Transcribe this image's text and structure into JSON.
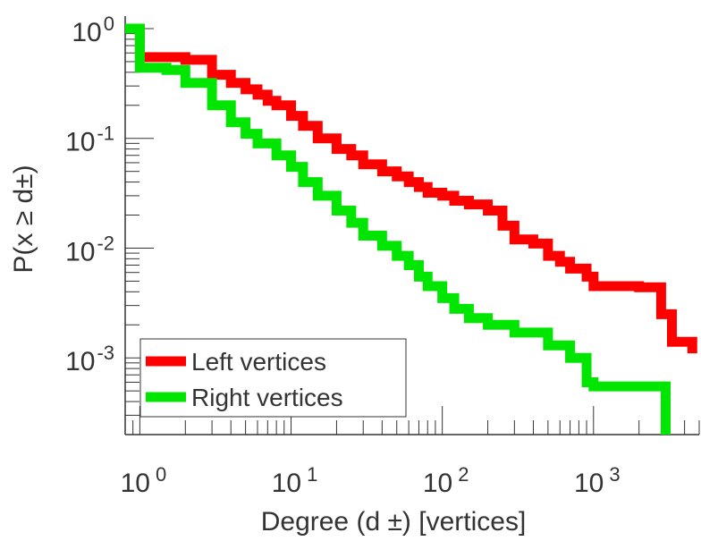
{
  "chart_data": {
    "type": "line",
    "title": "",
    "xlabel": "Degree (d ±) [vertices]",
    "ylabel": "P(x ≥ d±)",
    "x_scale": "log",
    "y_scale": "log",
    "xlim": [
      0.8,
      5000
    ],
    "ylim": [
      0.0002,
      1.3
    ],
    "grid": false,
    "legend_position": "bottom-left",
    "x_ticks": [
      {
        "value": 1,
        "base": "10",
        "exp": "0"
      },
      {
        "value": 10,
        "base": "10",
        "exp": "1"
      },
      {
        "value": 100,
        "base": "10",
        "exp": "2"
      },
      {
        "value": 1000,
        "base": "10",
        "exp": "3"
      }
    ],
    "y_ticks": [
      {
        "value": 1,
        "base": "10",
        "exp": "0"
      },
      {
        "value": 0.1,
        "base": "10",
        "exp": "-1"
      },
      {
        "value": 0.01,
        "base": "10",
        "exp": "-2"
      },
      {
        "value": 0.001,
        "base": "10",
        "exp": "-3"
      }
    ],
    "series": [
      {
        "name": "Left vertices",
        "color": "#ff0000",
        "x": [
          0.8,
          1,
          2,
          3,
          4,
          5,
          6,
          7,
          8,
          10,
          12,
          15,
          20,
          25,
          30,
          40,
          50,
          60,
          70,
          80,
          100,
          120,
          150,
          200,
          250,
          300,
          400,
          500,
          600,
          700,
          900,
          1000,
          2000,
          2800,
          3300,
          4500
        ],
        "y": [
          1.0,
          0.55,
          0.52,
          0.38,
          0.32,
          0.28,
          0.25,
          0.22,
          0.2,
          0.16,
          0.13,
          0.1,
          0.08,
          0.07,
          0.058,
          0.05,
          0.045,
          0.04,
          0.036,
          0.032,
          0.03,
          0.027,
          0.025,
          0.022,
          0.016,
          0.012,
          0.011,
          0.0085,
          0.0075,
          0.0065,
          0.0055,
          0.0045,
          0.0044,
          0.0025,
          0.0014,
          0.0011
        ]
      },
      {
        "name": "Right vertices",
        "color": "#00e600",
        "x": [
          0.8,
          1,
          1.5,
          2,
          3,
          4,
          5,
          6,
          8,
          10,
          12,
          15,
          20,
          25,
          30,
          40,
          50,
          60,
          70,
          80,
          100,
          120,
          150,
          200,
          300,
          500,
          700,
          900,
          1000,
          2000,
          2700,
          3000
        ],
        "y": [
          1.0,
          0.44,
          0.42,
          0.32,
          0.2,
          0.14,
          0.11,
          0.09,
          0.07,
          0.055,
          0.04,
          0.03,
          0.022,
          0.017,
          0.013,
          0.0105,
          0.0085,
          0.007,
          0.0055,
          0.0045,
          0.0035,
          0.0028,
          0.0023,
          0.002,
          0.0017,
          0.0013,
          0.001,
          0.0006,
          0.00055,
          0.00055,
          0.00055,
          0.0002
        ]
      }
    ]
  }
}
